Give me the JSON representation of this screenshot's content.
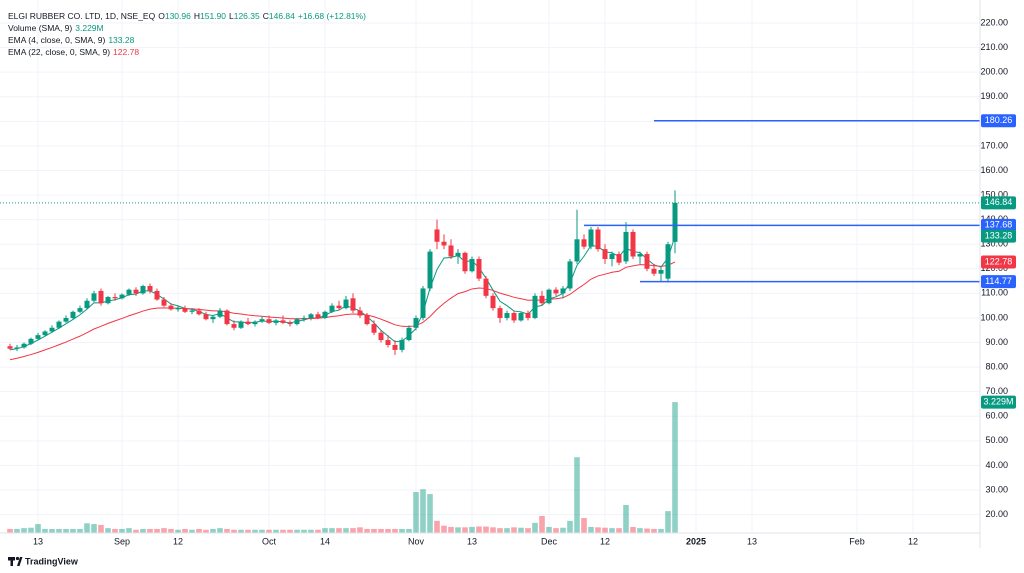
{
  "chart_data": {
    "type": "candlestick",
    "title": "ELGI RUBBER CO. LTD, 1D, NSE_EQ",
    "ohlc_keys": [
      "O",
      "H",
      "L",
      "C"
    ],
    "ohlc_labels": [
      "130.96",
      "151.90",
      "126.35",
      "146.84"
    ],
    "change": "+16.68 (+12.81%)",
    "up_color": "#089981",
    "down_color": "#f23645",
    "categories": [
      null,
      null,
      null,
      null,
      "13",
      null,
      null,
      null,
      null,
      null,
      null,
      null,
      null,
      null,
      null,
      null,
      "Sep",
      null,
      null,
      null,
      null,
      null,
      null,
      null,
      "12",
      null,
      null,
      null,
      null,
      null,
      null,
      null,
      null,
      null,
      null,
      null,
      null,
      "Oct",
      null,
      null,
      null,
      null,
      null,
      null,
      null,
      "14",
      null,
      null,
      null,
      null,
      null,
      null,
      null,
      null,
      null,
      null,
      null,
      null,
      "Nov",
      null,
      null,
      null,
      null,
      null,
      null,
      null,
      "13",
      null,
      null,
      null,
      null,
      null,
      null,
      null,
      null,
      null,
      null,
      "Dec",
      null,
      null,
      null,
      null,
      null,
      null,
      null,
      "12",
      null,
      null,
      null,
      null,
      null,
      null,
      null,
      null,
      null,
      null,
      null,
      null,
      "2025",
      null,
      null,
      null,
      null,
      null,
      null,
      null,
      "13",
      null,
      null,
      null,
      null,
      null,
      null,
      null,
      null,
      null,
      null,
      null,
      null,
      null,
      null,
      "Feb",
      null,
      null,
      null,
      null,
      null,
      null,
      null,
      "12",
      null,
      null,
      null,
      null,
      null,
      null,
      null,
      null,
      null
    ],
    "open": [
      88.5,
      87.5,
      88,
      89.5,
      91.5,
      93,
      94.5,
      96,
      98.5,
      100,
      102.5,
      104,
      107,
      111,
      106,
      108.5,
      108,
      109.5,
      111.5,
      110,
      113,
      111,
      107.5,
      105,
      103.5,
      104,
      102.5,
      103,
      101.5,
      99.5,
      100.5,
      103,
      97.5,
      96,
      98.5,
      97.5,
      98.5,
      99.5,
      98,
      99,
      98,
      97.5,
      99.5,
      100,
      101.5,
      100,
      102.5,
      105,
      104,
      108,
      103,
      101,
      97.5,
      94,
      91,
      89,
      87,
      91,
      96,
      100,
      112,
      136,
      131,
      129.5,
      125,
      126.5,
      119,
      124,
      116,
      109,
      104,
      100,
      102,
      99,
      102,
      100,
      109,
      106,
      111.5,
      110,
      112,
      123,
      132,
      129,
      136,
      128,
      124,
      126,
      123,
      135,
      125,
      126,
      120,
      118,
      116,
      130.96,
      null,
      null,
      null,
      null,
      null,
      null,
      null,
      null,
      null,
      null,
      null,
      null,
      null,
      null,
      null,
      null,
      null,
      null,
      null,
      null,
      null,
      null,
      null,
      null,
      null,
      null,
      null,
      null,
      null,
      null,
      null,
      null,
      null,
      null,
      null,
      null,
      null,
      null,
      null,
      null,
      null,
      null,
      null
    ],
    "high": [
      89.5,
      89,
      90,
      92,
      94,
      95,
      97,
      99,
      101,
      103,
      105,
      108,
      111,
      112,
      109,
      110,
      110,
      112,
      112.5,
      113.5,
      114,
      112,
      108.5,
      106,
      105,
      105,
      104,
      104,
      102.5,
      101,
      104,
      103.5,
      99,
      99,
      100,
      99,
      100.5,
      101,
      99.5,
      101,
      99,
      100,
      101,
      102,
      102.5,
      103,
      106,
      107,
      109,
      110,
      104.5,
      102,
      99,
      95,
      93,
      91,
      92,
      97,
      101,
      113,
      128,
      140,
      134,
      132,
      128,
      127,
      125,
      125,
      117,
      110,
      105,
      103,
      103,
      102.5,
      103,
      110,
      111,
      112,
      112.5,
      113,
      124,
      144,
      134,
      137,
      137,
      130,
      127,
      127,
      139,
      136,
      127,
      127,
      122,
      121,
      131,
      151.9,
      null,
      null,
      null,
      null,
      null,
      null,
      null,
      null,
      null,
      null,
      null,
      null,
      null,
      null,
      null,
      null,
      null,
      null,
      null,
      null,
      null,
      null,
      null,
      null,
      null,
      null,
      null,
      null,
      null,
      null,
      null,
      null,
      null,
      null,
      null,
      null,
      null,
      null,
      null,
      null,
      null,
      null,
      null
    ],
    "low": [
      87,
      86.5,
      87.5,
      89,
      91,
      92.5,
      94,
      95.5,
      98,
      99.5,
      102,
      103.5,
      106.5,
      105,
      105.5,
      107,
      107.5,
      109,
      109,
      109.5,
      110,
      107,
      104.5,
      103,
      102.5,
      102,
      101.5,
      101,
      99,
      98,
      100,
      97,
      95,
      95.5,
      97,
      96.5,
      98,
      97.5,
      97,
      97.5,
      96.5,
      97,
      98.5,
      99,
      99.5,
      99.5,
      102,
      103,
      103.5,
      102,
      100,
      97,
      93,
      90,
      88,
      85,
      86,
      90.5,
      95,
      99,
      111,
      128,
      128,
      124,
      122,
      118,
      118.5,
      115,
      108,
      103,
      98,
      99,
      98,
      98.5,
      99,
      99.5,
      105,
      105.5,
      109,
      108,
      111,
      122,
      128,
      128,
      127,
      122,
      121,
      121.5,
      122,
      124,
      122,
      119,
      117,
      115,
      114.5,
      126.35,
      null,
      null,
      null,
      null,
      null,
      null,
      null,
      null,
      null,
      null,
      null,
      null,
      null,
      null,
      null,
      null,
      null,
      null,
      null,
      null,
      null,
      null,
      null,
      null,
      null,
      null,
      null,
      null,
      null,
      null,
      null,
      null,
      null,
      null,
      null,
      null,
      null,
      null,
      null,
      null,
      null,
      null,
      null
    ],
    "close": [
      87.5,
      88,
      89.5,
      91.5,
      93,
      94.5,
      96,
      98.5,
      100,
      102.5,
      104,
      107,
      110,
      106,
      108.5,
      108,
      109.5,
      111.5,
      110,
      113,
      111,
      107.5,
      105,
      103.5,
      104,
      102.5,
      103,
      101.5,
      99.5,
      100.5,
      103,
      97.5,
      96,
      98.5,
      97.5,
      98.5,
      99.5,
      98,
      99,
      98,
      97.5,
      99.5,
      100,
      101.5,
      100,
      102.5,
      105,
      104,
      107.5,
      103,
      101,
      97.5,
      94,
      91,
      89,
      87,
      91,
      96,
      100,
      112,
      127,
      131,
      129.5,
      125,
      126.5,
      119,
      124,
      116,
      109,
      104,
      100,
      102,
      99,
      102,
      100,
      109,
      106,
      111.5,
      110,
      112,
      123,
      132,
      129,
      136,
      128,
      124,
      126,
      122.5,
      135,
      125,
      126,
      120,
      118,
      119.5,
      130,
      146.84,
      null,
      null,
      null,
      null,
      null,
      null,
      null,
      null,
      null,
      null,
      null,
      null,
      null,
      null,
      null,
      null,
      null,
      null,
      null,
      null,
      null,
      null,
      null,
      null,
      null,
      null,
      null,
      null,
      null,
      null,
      null,
      null,
      null,
      null,
      null,
      null,
      null,
      null,
      null,
      null,
      null,
      null,
      null
    ],
    "volume": [
      0.1,
      0.1,
      0.12,
      0.13,
      0.22,
      0.1,
      0.1,
      0.1,
      0.1,
      0.1,
      0.1,
      0.24,
      0.22,
      0.2,
      0.12,
      0.1,
      0.1,
      0.12,
      0.08,
      0.1,
      0.1,
      0.1,
      0.12,
      0.1,
      0.08,
      0.1,
      0.08,
      0.1,
      0.08,
      0.1,
      0.12,
      0.1,
      0.08,
      0.08,
      0.08,
      0.08,
      0.08,
      0.08,
      0.08,
      0.08,
      0.08,
      0.08,
      0.08,
      0.08,
      0.08,
      0.12,
      0.12,
      0.12,
      0.12,
      0.12,
      0.14,
      0.1,
      0.1,
      0.1,
      0.1,
      0.1,
      0.1,
      0.1,
      1.01,
      1.08,
      0.96,
      0.3,
      0.18,
      0.15,
      0.14,
      0.14,
      0.15,
      0.16,
      0.16,
      0.14,
      0.12,
      0.12,
      0.14,
      0.13,
      0.12,
      0.25,
      0.42,
      0.15,
      0.12,
      0.13,
      0.3,
      1.87,
      0.37,
      0.15,
      0.14,
      0.13,
      0.12,
      0.12,
      0.69,
      0.15,
      0.12,
      0.11,
      0.1,
      0.1,
      0.54,
      3.229,
      null,
      null,
      null,
      null,
      null,
      null,
      null,
      null,
      null,
      null,
      null,
      null,
      null,
      null,
      null,
      null,
      null,
      null,
      null,
      null,
      null,
      null,
      null,
      null,
      null,
      null,
      null,
      null,
      null,
      null,
      null,
      null,
      null,
      null,
      null,
      null,
      null,
      null,
      null,
      null,
      null,
      null,
      null
    ],
    "volume_indicator": {
      "name": "Volume (SMA, 9)",
      "label": "3.229M",
      "color": "#089981"
    },
    "indicators": [
      {
        "name": "EMA (4, close, 0, SMA, 9)",
        "color": "#089981",
        "values": [
          87,
          87.5,
          88.3,
          89.6,
          91,
          92.6,
          94.2,
          95.9,
          97.6,
          99.4,
          101.3,
          103.6,
          106.2,
          106.1,
          106.9,
          107.4,
          108.2,
          109.5,
          109.7,
          111,
          111,
          109.6,
          107.7,
          105.7,
          104.9,
          103.9,
          103.5,
          102.7,
          101.4,
          101,
          101.8,
          100,
          98.4,
          98.4,
          98,
          98.2,
          98.8,
          98.5,
          98.7,
          98.4,
          98,
          98.6,
          99.2,
          100,
          100,
          101,
          102.6,
          103.2,
          104.9,
          104.1,
          102.8,
          100.6,
          98,
          95,
          92.6,
          90.3,
          90.6,
          92.8,
          95.7,
          102.2,
          112.1,
          119.7,
          124.4,
          124.6,
          125.4,
          122.9,
          123.3,
          120.4,
          116.2,
          111.3,
          106.8,
          105,
          102.8,
          102.5,
          101.5,
          104.5,
          105.1,
          107.7,
          108.6,
          110,
          114.3,
          121.4,
          125.1,
          129.5,
          129.1,
          126.9,
          126.5,
          125,
          128.4,
          127,
          126.6,
          124,
          121.6,
          120.7,
          124.4,
          133.28,
          null,
          null,
          null,
          null,
          null,
          null,
          null,
          null,
          null,
          null,
          null,
          null,
          null,
          null,
          null,
          null,
          null,
          null,
          null,
          null,
          null,
          null,
          null,
          null,
          null,
          null,
          null,
          null,
          null,
          null,
          null,
          null,
          null,
          null,
          null,
          null,
          null,
          null,
          null,
          null,
          null,
          null,
          null
        ]
      },
      {
        "name": "EMA (22, close, 0, SMA, 9)",
        "color": "#f23645",
        "values": [
          83,
          83.6,
          84.3,
          85.1,
          86,
          87,
          88,
          89.1,
          90.2,
          91.4,
          92.6,
          94,
          95.5,
          96.6,
          97.8,
          98.8,
          99.8,
          100.9,
          101.8,
          102.8,
          103.6,
          104,
          104.1,
          104,
          104,
          103.8,
          103.7,
          103.5,
          103.2,
          102.9,
          102.9,
          102.5,
          101.9,
          101.6,
          101.2,
          100.9,
          100.7,
          100.4,
          100.2,
          100,
          99.7,
          99.7,
          99.7,
          99.8,
          99.9,
          100.2,
          100.6,
          100.9,
          101.4,
          101.6,
          101.5,
          101.2,
          100.5,
          99.5,
          98.4,
          97.2,
          96.6,
          96.5,
          96.8,
          98.2,
          100.6,
          103.5,
          106,
          108.1,
          109.9,
          110.7,
          111.8,
          112.2,
          112,
          111.2,
          110.1,
          109.3,
          108.4,
          107.8,
          107.2,
          107.3,
          107.2,
          107.6,
          107.8,
          108.2,
          109.6,
          111.7,
          113.6,
          115.8,
          117.1,
          117.8,
          118.6,
          119,
          120.6,
          121.2,
          121.7,
          121.6,
          121.3,
          121,
          121.4,
          122.78,
          null,
          null,
          null,
          null,
          null,
          null,
          null,
          null,
          null,
          null,
          null,
          null,
          null,
          null,
          null,
          null,
          null,
          null,
          null,
          null,
          null,
          null,
          null,
          null,
          null,
          null,
          null,
          null,
          null,
          null,
          null,
          null,
          null,
          null,
          null,
          null,
          null,
          null,
          null,
          null,
          null,
          null,
          null
        ]
      }
    ],
    "levels": [
      {
        "value": 180.26,
        "from": 92,
        "color": "#2962ff"
      },
      {
        "value": 137.68,
        "from": 82,
        "color": "#2962ff"
      },
      {
        "value": 114.77,
        "from": 90,
        "color": "#2962ff"
      }
    ],
    "ylim": [
      12.5,
      225.3
    ],
    "yticks": [
      {
        "value": 20,
        "label": "20.00"
      },
      {
        "value": 30,
        "label": "30.00"
      },
      {
        "value": 40,
        "label": "40.00"
      },
      {
        "value": 50,
        "label": "50.00"
      },
      {
        "value": 60,
        "label": "60.00"
      },
      {
        "value": 70,
        "label": "70.00"
      },
      {
        "value": 80,
        "label": "80.00"
      },
      {
        "value": 90,
        "label": "90.00"
      },
      {
        "value": 100,
        "label": "100.00"
      },
      {
        "value": 110,
        "label": "110.00"
      },
      {
        "value": 120,
        "label": "120.00"
      },
      {
        "value": 130,
        "label": "130.00"
      },
      {
        "value": 140,
        "label": "140.00"
      },
      {
        "value": 150,
        "label": "150.00"
      },
      {
        "value": 160,
        "label": "160.00"
      },
      {
        "value": 170,
        "label": "170.00"
      },
      {
        "value": 180,
        "label": "180.00"
      },
      {
        "value": 190,
        "label": "190.00"
      },
      {
        "value": 200,
        "label": "200.00"
      },
      {
        "value": 210,
        "label": "210.00"
      },
      {
        "value": 220,
        "label": "220.00"
      }
    ],
    "volume_lim": [
      0,
      12.9
    ],
    "grid": true,
    "watermark": "TradingView"
  }
}
